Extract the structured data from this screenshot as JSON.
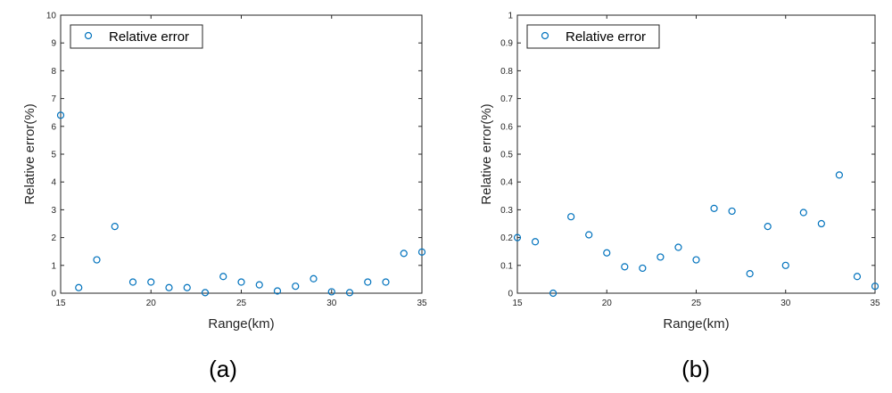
{
  "chart_data": [
    {
      "type": "scatter",
      "panel": "(a)",
      "xlabel": "Range(km)",
      "ylabel": "Relative error(%)",
      "xlim": [
        15,
        35
      ],
      "ylim": [
        0,
        10
      ],
      "xticks": [
        "15",
        "20",
        "25",
        "30",
        "35"
      ],
      "yticks": [
        "0",
        "1",
        "2",
        "3",
        "4",
        "5",
        "6",
        "7",
        "8",
        "9",
        "10"
      ],
      "grid": false,
      "legend_position": "top-left",
      "series": [
        {
          "name": "Relative error",
          "color": "#0072BD",
          "marker": "circle-open",
          "x": [
            15,
            16,
            17,
            18,
            19,
            20,
            21,
            22,
            23,
            24,
            25,
            26,
            27,
            28,
            29,
            30,
            31,
            32,
            33,
            34,
            35
          ],
          "y": [
            6.4,
            0.2,
            1.2,
            2.4,
            0.4,
            0.4,
            0.2,
            0.2,
            0.02,
            0.6,
            0.4,
            0.3,
            0.08,
            0.25,
            0.52,
            0.05,
            0.02,
            0.4,
            0.4,
            1.43,
            1.48
          ]
        }
      ]
    },
    {
      "type": "scatter",
      "panel": "(b)",
      "xlabel": "Range(km)",
      "ylabel": "Relative error(%)",
      "xlim": [
        15,
        35
      ],
      "ylim": [
        0,
        1
      ],
      "xticks": [
        "15",
        "20",
        "25",
        "30",
        "35"
      ],
      "yticks": [
        "0",
        "0.1",
        "0.2",
        "0.3",
        "0.4",
        "0.5",
        "0.6",
        "0.7",
        "0.8",
        "0.9",
        "1"
      ],
      "grid": false,
      "legend_position": "top-left",
      "series": [
        {
          "name": "Relative error",
          "color": "#0072BD",
          "marker": "circle-open",
          "x": [
            15,
            16,
            17,
            18,
            19,
            20,
            21,
            22,
            23,
            24,
            25,
            26,
            27,
            28,
            29,
            30,
            31,
            32,
            33,
            34,
            35
          ],
          "y": [
            0.2,
            0.185,
            0.0,
            0.275,
            0.21,
            0.145,
            0.095,
            0.09,
            0.13,
            0.165,
            0.12,
            0.305,
            0.295,
            0.07,
            0.24,
            0.1,
            0.29,
            0.25,
            0.425,
            0.06,
            0.025
          ]
        }
      ]
    }
  ]
}
